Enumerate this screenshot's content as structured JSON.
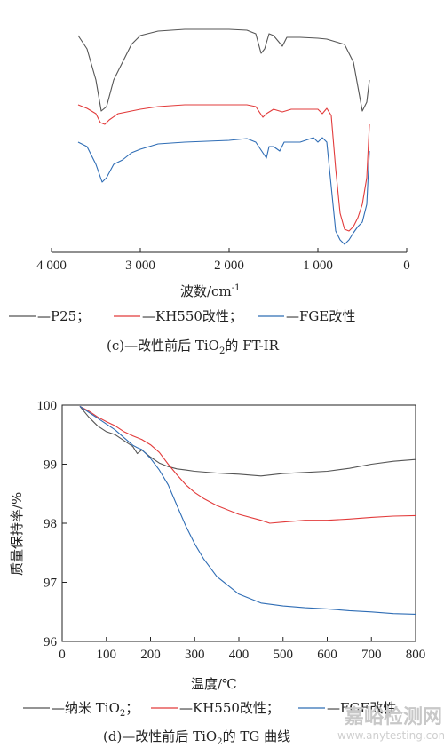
{
  "chart_data": [
    {
      "type": "line",
      "xlabel": "波数/cm",
      "xlabel_sup": "-1",
      "xlim": [
        4000,
        0
      ],
      "xticks": [
        "4 000",
        "3 000",
        "2 000",
        "1 000",
        "0"
      ],
      "xtick_values": [
        4000,
        3000,
        2000,
        1000,
        0
      ],
      "caption_pre": "(c)—改性前后 TiO",
      "caption_sub": "2",
      "caption_post": "的 FT-IR",
      "legend": [
        {
          "label": "—P25；",
          "color": "#555555"
        },
        {
          "label": "—KH550改性；",
          "color": "#e23b3b"
        },
        {
          "label": "—FGE改性",
          "color": "#2f6db5"
        }
      ],
      "series": [
        {
          "color": "#555555",
          "points": [
            [
              3700,
              10
            ],
            [
              3600,
              25
            ],
            [
              3500,
              60
            ],
            [
              3440,
              95
            ],
            [
              3380,
              90
            ],
            [
              3300,
              60
            ],
            [
              3200,
              40
            ],
            [
              3100,
              20
            ],
            [
              3000,
              10
            ],
            [
              2800,
              5
            ],
            [
              2500,
              3
            ],
            [
              2000,
              3
            ],
            [
              1800,
              4
            ],
            [
              1700,
              8
            ],
            [
              1640,
              30
            ],
            [
              1600,
              25
            ],
            [
              1550,
              8
            ],
            [
              1500,
              10
            ],
            [
              1400,
              22
            ],
            [
              1350,
              12
            ],
            [
              1200,
              12
            ],
            [
              1000,
              13
            ],
            [
              900,
              14
            ],
            [
              700,
              20
            ],
            [
              600,
              40
            ],
            [
              500,
              95
            ],
            [
              450,
              85
            ],
            [
              420,
              60
            ]
          ]
        },
        {
          "color": "#e23b3b",
          "points": [
            [
              3700,
              88
            ],
            [
              3600,
              92
            ],
            [
              3500,
              98
            ],
            [
              3450,
              108
            ],
            [
              3400,
              110
            ],
            [
              3350,
              105
            ],
            [
              3250,
              98
            ],
            [
              3100,
              95
            ],
            [
              3000,
              93
            ],
            [
              2800,
              90
            ],
            [
              2500,
              88
            ],
            [
              2000,
              88
            ],
            [
              1800,
              88
            ],
            [
              1700,
              90
            ],
            [
              1620,
              102
            ],
            [
              1580,
              98
            ],
            [
              1500,
              93
            ],
            [
              1400,
              96
            ],
            [
              1300,
              93
            ],
            [
              1150,
              93
            ],
            [
              1000,
              93
            ],
            [
              950,
              98
            ],
            [
              900,
              92
            ],
            [
              850,
              100
            ],
            [
              800,
              160
            ],
            [
              750,
              210
            ],
            [
              700,
              228
            ],
            [
              650,
              230
            ],
            [
              600,
              225
            ],
            [
              550,
              215
            ],
            [
              500,
              200
            ],
            [
              450,
              170
            ],
            [
              420,
              110
            ]
          ]
        },
        {
          "color": "#2f6db5",
          "points": [
            [
              3700,
              130
            ],
            [
              3600,
              135
            ],
            [
              3500,
              155
            ],
            [
              3430,
              175
            ],
            [
              3380,
              170
            ],
            [
              3300,
              155
            ],
            [
              3200,
              150
            ],
            [
              3100,
              142
            ],
            [
              3000,
              138
            ],
            [
              2800,
              132
            ],
            [
              2500,
              130
            ],
            [
              2000,
              128
            ],
            [
              1800,
              126
            ],
            [
              1700,
              130
            ],
            [
              1620,
              142
            ],
            [
              1580,
              148
            ],
            [
              1550,
              135
            ],
            [
              1500,
              135
            ],
            [
              1430,
              140
            ],
            [
              1380,
              130
            ],
            [
              1200,
              130
            ],
            [
              1050,
              125
            ],
            [
              1000,
              130
            ],
            [
              950,
              125
            ],
            [
              900,
              130
            ],
            [
              850,
              180
            ],
            [
              800,
              230
            ],
            [
              750,
              240
            ],
            [
              700,
              245
            ],
            [
              650,
              240
            ],
            [
              600,
              232
            ],
            [
              550,
              225
            ],
            [
              500,
              220
            ],
            [
              450,
              200
            ],
            [
              420,
              140
            ]
          ]
        }
      ]
    },
    {
      "type": "line",
      "xlabel": "温度/℃",
      "ylabel": "质量保持率/%",
      "xlim": [
        0,
        800
      ],
      "ylim": [
        96,
        100
      ],
      "xticks": [
        0,
        100,
        200,
        300,
        400,
        500,
        600,
        700,
        800
      ],
      "yticks": [
        96,
        97,
        98,
        99,
        100
      ],
      "caption_pre": "(d)—改性前后 TiO",
      "caption_sub": "2",
      "caption_post": "的 TG 曲线",
      "legend": [
        {
          "label_pre": "—纳米 TiO",
          "label_sub": "2",
          "label_post": "；",
          "color": "#555555"
        },
        {
          "label_pre": "—KH550改性；",
          "label_sub": "",
          "label_post": "",
          "color": "#e23b3b"
        },
        {
          "label_pre": "—FGE改性",
          "label_sub": "",
          "label_post": "",
          "color": "#2f6db5"
        }
      ],
      "series": [
        {
          "color": "#555555",
          "x": [
            40,
            60,
            80,
            100,
            120,
            140,
            160,
            170,
            180,
            200,
            220,
            240,
            260,
            280,
            300,
            350,
            400,
            450,
            500,
            550,
            600,
            650,
            700,
            750,
            800
          ],
          "y": [
            99.98,
            99.8,
            99.65,
            99.55,
            99.5,
            99.4,
            99.3,
            99.18,
            99.24,
            99.12,
            99.02,
            98.96,
            98.92,
            98.9,
            98.88,
            98.85,
            98.83,
            98.8,
            98.84,
            98.86,
            98.88,
            98.93,
            99.0,
            99.05,
            99.08
          ]
        },
        {
          "color": "#e23b3b",
          "x": [
            40,
            60,
            80,
            100,
            120,
            140,
            160,
            180,
            200,
            220,
            240,
            260,
            280,
            300,
            320,
            350,
            400,
            450,
            470,
            500,
            550,
            600,
            650,
            700,
            750,
            800
          ],
          "y": [
            99.98,
            99.9,
            99.8,
            99.72,
            99.65,
            99.55,
            99.48,
            99.42,
            99.33,
            99.2,
            99.0,
            98.82,
            98.65,
            98.52,
            98.42,
            98.3,
            98.15,
            98.05,
            98.0,
            98.02,
            98.05,
            98.05,
            98.07,
            98.1,
            98.12,
            98.13
          ]
        },
        {
          "color": "#2f6db5",
          "x": [
            40,
            60,
            80,
            100,
            120,
            140,
            160,
            170,
            180,
            200,
            220,
            240,
            260,
            280,
            300,
            320,
            350,
            400,
            450,
            500,
            550,
            600,
            650,
            700,
            750,
            800
          ],
          "y": [
            99.98,
            99.88,
            99.78,
            99.68,
            99.58,
            99.45,
            99.32,
            99.28,
            99.25,
            99.1,
            98.9,
            98.65,
            98.3,
            97.95,
            97.65,
            97.4,
            97.1,
            96.8,
            96.65,
            96.6,
            96.57,
            96.55,
            96.52,
            96.5,
            96.47,
            96.46
          ]
        }
      ]
    }
  ],
  "watermark": {
    "main": "嘉峪检测网",
    "sub": "www.anytesting.com"
  }
}
